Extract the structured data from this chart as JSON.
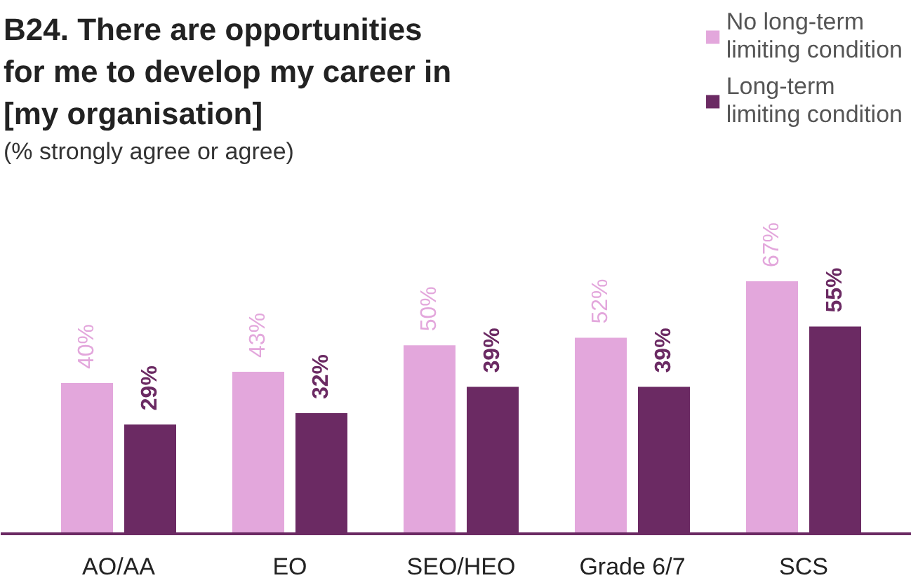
{
  "chart_data": {
    "type": "bar",
    "title": "B24. There are opportunities for me to develop my career in [my organisation]",
    "subtitle": "(% strongly agree or agree)",
    "categories": [
      "AO/AA",
      "EO",
      "SEO/HEO",
      "Grade 6/7",
      "SCS"
    ],
    "series": [
      {
        "name": "No long-term limiting condition",
        "color": "#e3a7dc",
        "values": [
          40,
          43,
          50,
          52,
          67
        ],
        "value_labels": [
          "40%",
          "43%",
          "50%",
          "52%",
          "67%"
        ]
      },
      {
        "name": "Long-term limiting condition",
        "color": "#6b2a63",
        "values": [
          29,
          32,
          39,
          39,
          55
        ],
        "value_labels": [
          "29%",
          "32%",
          "39%",
          "39%",
          "55%"
        ]
      }
    ],
    "tick_labels": "x",
    "legend": "top right",
    "grid": false
  }
}
